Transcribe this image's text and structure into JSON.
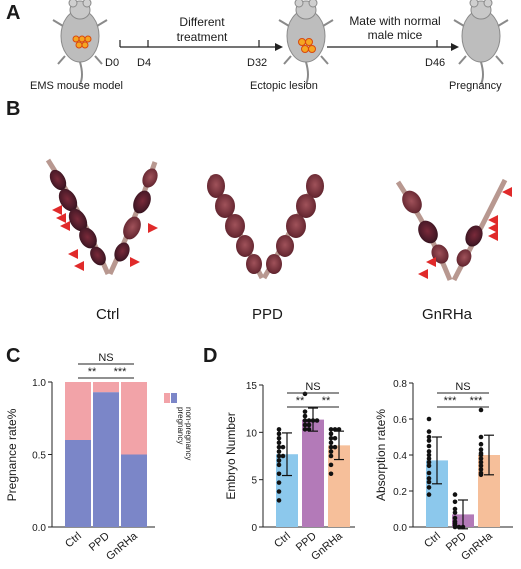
{
  "panels": {
    "a": "A",
    "b": "B",
    "c": "C",
    "d": "D"
  },
  "timeline": {
    "days": [
      "D0",
      "D4",
      "D32",
      "D46"
    ],
    "treatment_label": "Different treatment",
    "mate_label": "Mate with normal male mice",
    "stages": [
      "EMS mouse model",
      "Ectopic lesion",
      "Pregnancy"
    ]
  },
  "uterus_labels": [
    "Ctrl",
    "PPD",
    "GnRHa"
  ],
  "colors": {
    "pregnancy": "#7b86c8",
    "non_pregnancy": "#f2a3a8",
    "ctrl": "#8cc8ec",
    "ppd": "#b37ab8",
    "gnrha": "#f6bf9a",
    "arrow": "#e02a2a"
  },
  "chart_data": [
    {
      "type": "bar",
      "stacked": true,
      "ylabel": "Pregnance rate%",
      "ylim": [
        0,
        1.0
      ],
      "yticks": [
        "0.0",
        "0.5",
        "1.0"
      ],
      "categories": [
        "Ctrl",
        "PPD",
        "GnRHa"
      ],
      "series": [
        {
          "name": "pregnancy",
          "values": [
            0.6,
            0.93,
            0.5
          ]
        },
        {
          "name": "non-pregnancy",
          "values": [
            0.4,
            0.07,
            0.5
          ]
        }
      ],
      "legend": [
        "pregnancy",
        "non-pregnancy"
      ],
      "significance": [
        {
          "from": "Ctrl",
          "to": "GnRHa",
          "label": "NS"
        },
        {
          "from": "Ctrl",
          "to": "PPD",
          "label": "**"
        },
        {
          "from": "PPD",
          "to": "GnRHa",
          "label": "***"
        }
      ]
    },
    {
      "type": "bar",
      "ylabel": "Embryo Number",
      "ylim": [
        0,
        16
      ],
      "yticks": [
        "0",
        "5",
        "10",
        "15"
      ],
      "categories": [
        "Ctrl",
        "PPD",
        "GnRHa"
      ],
      "values": [
        8.2,
        12.1,
        9.2
      ],
      "errors": [
        2.4,
        1.3,
        1.6
      ],
      "points": [
        [
          11,
          10.5,
          10,
          9.5,
          9,
          9,
          8.5,
          8,
          8,
          7.5,
          7,
          6,
          5,
          4,
          3
        ],
        [
          15,
          13,
          12.5,
          12,
          12,
          12,
          12,
          11.5,
          11.5,
          11,
          11
        ],
        [
          11,
          11,
          11,
          10.5,
          10,
          10,
          9.5,
          9,
          9,
          8.5,
          8,
          7,
          6
        ]
      ],
      "significance": [
        {
          "from": "Ctrl",
          "to": "GnRHa",
          "label": "NS"
        },
        {
          "from": "Ctrl",
          "to": "PPD",
          "label": "**"
        },
        {
          "from": "PPD",
          "to": "GnRHa",
          "label": "**"
        }
      ]
    },
    {
      "type": "bar",
      "ylabel": "Absorption rate%",
      "ylim": [
        0,
        0.8
      ],
      "yticks": [
        "0.0",
        "0.2",
        "0.4",
        "0.6",
        "0.8"
      ],
      "categories": [
        "Ctrl",
        "PPD",
        "GnRHa"
      ],
      "values": [
        0.37,
        0.07,
        0.4
      ],
      "errors": [
        0.13,
        0.08,
        0.11
      ],
      "points": [
        [
          0.6,
          0.53,
          0.5,
          0.48,
          0.45,
          0.42,
          0.4,
          0.38,
          0.36,
          0.34,
          0.3,
          0.27,
          0.25,
          0.22,
          0.18
        ],
        [
          0.18,
          0.14,
          0.1,
          0.08,
          0.05,
          0.03,
          0.02,
          0.01,
          0.0,
          0.0,
          0.0
        ],
        [
          0.65,
          0.5,
          0.46,
          0.43,
          0.41,
          0.4,
          0.38,
          0.36,
          0.34,
          0.32,
          0.3,
          0.29
        ]
      ],
      "significance": [
        {
          "from": "Ctrl",
          "to": "GnRHa",
          "label": "NS"
        },
        {
          "from": "Ctrl",
          "to": "PPD",
          "label": "***"
        },
        {
          "from": "PPD",
          "to": "GnRHa",
          "label": "***"
        }
      ]
    }
  ]
}
